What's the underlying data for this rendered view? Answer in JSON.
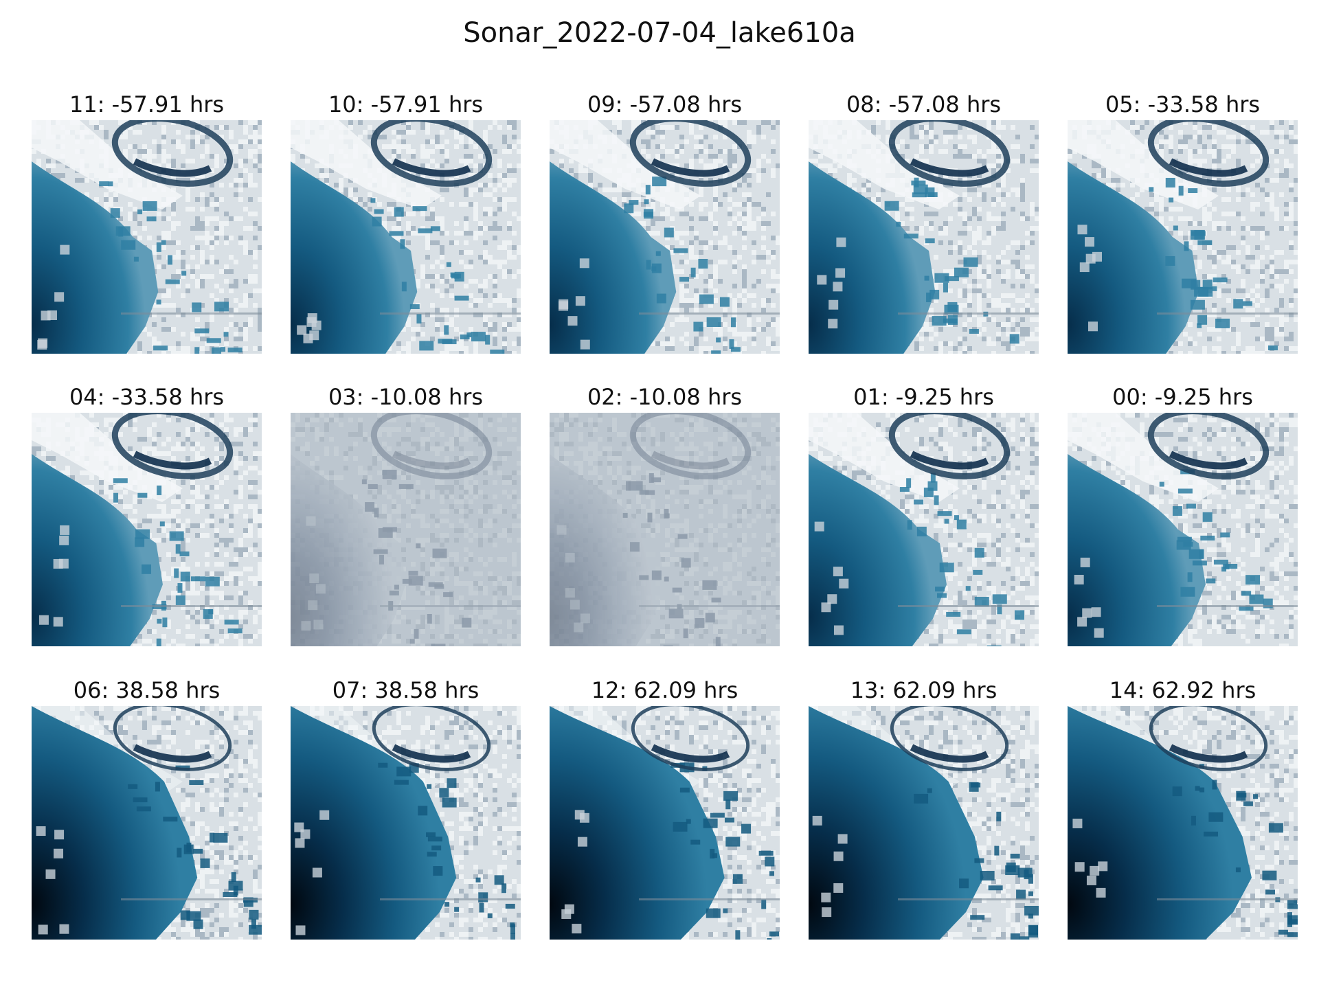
{
  "figure": {
    "title": "Sonar_2022-07-04_lake610a"
  },
  "panels": [
    {
      "label": "11: -57.91 hrs",
      "variant": "clear",
      "lake_extent": 0.55
    },
    {
      "label": "10: -57.91 hrs",
      "variant": "clear",
      "lake_extent": 0.55
    },
    {
      "label": "09: -57.08 hrs",
      "variant": "clear",
      "lake_extent": 0.55
    },
    {
      "label": "08: -57.08 hrs",
      "variant": "clear",
      "lake_extent": 0.55
    },
    {
      "label": "05: -33.58 hrs",
      "variant": "clear",
      "lake_extent": 0.57
    },
    {
      "label": "04: -33.58 hrs",
      "variant": "clear",
      "lake_extent": 0.57
    },
    {
      "label": "03: -10.08 hrs",
      "variant": "hazy",
      "lake_extent": 0.5
    },
    {
      "label": "02: -10.08 hrs",
      "variant": "hazy",
      "lake_extent": 0.5
    },
    {
      "label": "01: -9.25 hrs",
      "variant": "clear",
      "lake_extent": 0.6
    },
    {
      "label": "00: -9.25 hrs",
      "variant": "clear",
      "lake_extent": 0.6
    },
    {
      "label": "06: 38.58 hrs",
      "variant": "dark",
      "lake_extent": 0.72
    },
    {
      "label": "07: 38.58 hrs",
      "variant": "dark",
      "lake_extent": 0.72
    },
    {
      "label": "12: 62.09 hrs",
      "variant": "dark",
      "lake_extent": 0.76
    },
    {
      "label": "13: 62.09 hrs",
      "variant": "dark",
      "lake_extent": 0.76
    },
    {
      "label": "14: 62.92 hrs",
      "variant": "dark",
      "lake_extent": 0.8
    }
  ],
  "colors": {
    "ice": "#d9e0e5",
    "ice_bright": "#eef2f4",
    "lake_shallow": "#2f7fa3",
    "lake_mid": "#145a80",
    "lake_deep": "#062d4a",
    "haze": "#b9c3cc",
    "haze_dark": "#3d4a5e"
  }
}
